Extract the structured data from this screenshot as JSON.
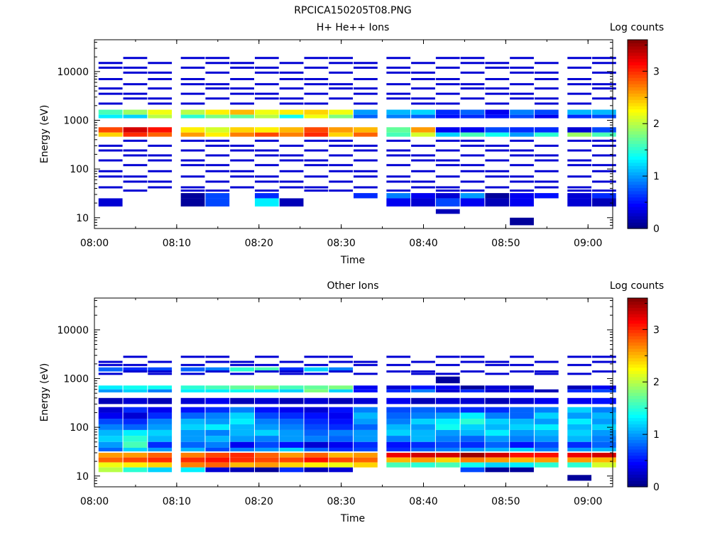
{
  "title": "RPCICA150205T08.PNG",
  "colorbar": {
    "title": "Log counts",
    "ticks": [
      "0",
      "1",
      "2",
      "3"
    ],
    "range": [
      0,
      3.6
    ],
    "colormap": [
      "#00007f",
      "#0000ff",
      "#007fff",
      "#00ffff",
      "#7fff7f",
      "#ffff00",
      "#ff7f00",
      "#ff0000",
      "#7f0000"
    ]
  },
  "chart_data": [
    {
      "type": "heatmap",
      "title": "H+ He++ Ions",
      "xlabel": "Time",
      "ylabel": "Energy (eV)",
      "x_ticks": [
        "08:00",
        "08:10",
        "08:20",
        "08:30",
        "08:40",
        "08:50",
        "09:00"
      ],
      "xlim": [
        "08:00",
        "09:03"
      ],
      "y_scale": "log",
      "y_ticks": [
        "10",
        "100",
        "1000",
        "10000"
      ],
      "ylim": [
        6,
        45000
      ],
      "time_bins": [
        "08:02",
        "08:05",
        "08:08",
        "08:12",
        "08:15",
        "08:18",
        "08:21",
        "08:24",
        "08:27",
        "08:30",
        "08:33",
        "08:37",
        "08:40",
        "08:43",
        "08:46",
        "08:49",
        "08:52",
        "08:55",
        "08:59",
        "09:02"
      ],
      "bands": [
        {
          "e_lo": 560,
          "e_hi": 720,
          "values": [
            2.9,
            3.3,
            3.1,
            2.3,
            2.1,
            2.4,
            2.3,
            2.5,
            2.9,
            2.6,
            2.5,
            1.7,
            2.6,
            0.4,
            0.4,
            0.7,
            0.6,
            0.6,
            0.3,
            0.7
          ]
        },
        {
          "e_lo": 460,
          "e_hi": 560,
          "values": [
            2.4,
            3.0,
            2.8,
            2.6,
            2.3,
            2.7,
            2.9,
            2.7,
            3.0,
            2.4,
            2.8,
            1.6,
            2.1,
            1.2,
            1.6,
            1.4,
            1.0,
            1.5,
            1.9,
            1.6
          ]
        },
        {
          "e_lo": 1300,
          "e_hi": 1650,
          "values": [
            1.6,
            1.9,
            2.2,
            2.0,
            2.3,
            2.5,
            2.2,
            2.3,
            2.4,
            2.2,
            1.0,
            1.1,
            1.2,
            0.6,
            0.8,
            0.4,
            0.9,
            0.7,
            1.1,
            1.1
          ]
        },
        {
          "e_lo": 1100,
          "e_hi": 1300,
          "values": [
            1.3,
            1.2,
            2.0,
            1.5,
            1.8,
            1.7,
            2.0,
            1.4,
            2.2,
            1.8,
            0.8,
            0.9,
            0.8,
            0.5,
            0.6,
            0.5,
            0.7,
            0.4,
            0.6,
            0.7
          ]
        },
        {
          "e_lo": 25,
          "e_hi": 32,
          "values": [
            null,
            null,
            null,
            0.1,
            0.7,
            null,
            0.6,
            null,
            null,
            null,
            0.6,
            0.9,
            0.4,
            0.3,
            1.0,
            0.1,
            0.4,
            0.5,
            0.3,
            0.6
          ]
        },
        {
          "e_lo": 17,
          "e_hi": 25,
          "values": [
            0.3,
            null,
            null,
            0.1,
            0.7,
            null,
            1.3,
            0.2,
            null,
            null,
            null,
            0.4,
            0.3,
            0.7,
            0.4,
            0.2,
            0.4,
            null,
            0.3,
            0.2
          ]
        },
        {
          "e_lo": 7,
          "e_hi": 10,
          "values": [
            null,
            null,
            null,
            null,
            null,
            null,
            null,
            null,
            null,
            null,
            null,
            null,
            null,
            null,
            null,
            null,
            0.1,
            null,
            null,
            null
          ]
        },
        {
          "e_lo": 12,
          "e_hi": 15,
          "values": [
            null,
            null,
            null,
            null,
            null,
            null,
            null,
            null,
            null,
            null,
            null,
            null,
            null,
            0.2,
            null,
            null,
            null,
            null,
            null,
            null
          ]
        }
      ],
      "sparse_energies": [
        19000,
        15000,
        12000,
        9500,
        7000,
        5500,
        4500,
        3500,
        2800,
        2200,
        380,
        300,
        240,
        190,
        150,
        120,
        90,
        70,
        55,
        42,
        36
      ],
      "sparse_level": 0.3
    },
    {
      "type": "heatmap",
      "title": "Other Ions",
      "xlabel": "Time",
      "ylabel": "Energy (eV)",
      "x_ticks": [
        "08:00",
        "08:10",
        "08:20",
        "08:30",
        "08:40",
        "08:50",
        "09:00"
      ],
      "xlim": [
        "08:00",
        "09:03"
      ],
      "y_scale": "log",
      "y_ticks": [
        "10",
        "100",
        "1000",
        "10000"
      ],
      "ylim": [
        6,
        45000
      ],
      "time_bins": [
        "08:02",
        "08:05",
        "08:08",
        "08:12",
        "08:15",
        "08:18",
        "08:21",
        "08:24",
        "08:27",
        "08:30",
        "08:33",
        "08:37",
        "08:40",
        "08:43",
        "08:46",
        "08:49",
        "08:52",
        "08:55",
        "08:59",
        "09:02"
      ],
      "bands": [
        {
          "e_lo": 24,
          "e_hi": 30,
          "values": [
            2.6,
            2.6,
            2.8,
            2.7,
            2.9,
            3.0,
            2.8,
            2.6,
            2.8,
            2.5,
            2.6,
            3.2,
            3.3,
            3.3,
            3.5,
            3.3,
            3.1,
            3.1,
            3.2,
            3.3
          ]
        },
        {
          "e_lo": 19,
          "e_hi": 24,
          "values": [
            2.8,
            2.9,
            3.0,
            3.0,
            3.1,
            3.0,
            2.9,
            2.9,
            3.1,
            2.9,
            2.8,
            2.5,
            2.6,
            2.4,
            2.7,
            2.6,
            2.5,
            2.6,
            2.6,
            2.5
          ]
        },
        {
          "e_lo": 15,
          "e_hi": 19,
          "values": [
            2.2,
            2.3,
            2.4,
            2.7,
            2.8,
            2.5,
            2.6,
            2.4,
            2.3,
            2.2,
            2.4,
            1.6,
            1.5,
            1.6,
            1.4,
            1.2,
            1.3,
            1.5,
            1.5,
            2.1
          ]
        },
        {
          "e_lo": 12,
          "e_hi": 15,
          "values": [
            2.0,
            1.5,
            1.2,
            1.3,
            0.3,
            0.2,
            0.1,
            0.6,
            0.2,
            0.3,
            null,
            null,
            null,
            null,
            0.7,
            0.1,
            0.1,
            null,
            null,
            null
          ]
        },
        {
          "e_lo": 8,
          "e_hi": 10.5,
          "values": [
            null,
            null,
            null,
            null,
            null,
            null,
            null,
            null,
            null,
            null,
            null,
            null,
            null,
            null,
            null,
            null,
            null,
            null,
            0.1,
            null
          ]
        },
        {
          "e_lo": 600,
          "e_hi": 720,
          "values": [
            1.3,
            1.4,
            1.4,
            1.5,
            1.6,
            1.7,
            1.8,
            1.6,
            1.7,
            1.8,
            0.4,
            0.3,
            0.5,
            0.4,
            0.1,
            0.3,
            0.2,
            null,
            0.2,
            0.4
          ]
        },
        {
          "e_lo": 520,
          "e_hi": 600,
          "values": [
            1.0,
            1.2,
            0.9,
            1.3,
            1.3,
            1.4,
            1.3,
            1.2,
            1.8,
            1.2,
            0.5,
            0.6,
            0.9,
            0.3,
            0.6,
            0.3,
            0.5,
            0.2,
            0.6,
            0.7
          ]
        },
        {
          "e_lo": 1400,
          "e_hi": 1700,
          "values": [
            0.8,
            0.6,
            0.7,
            0.8,
            0.9,
            1.5,
            1.6,
            0.6,
            1.2,
            0.9,
            null,
            null,
            null,
            null,
            null,
            null,
            null,
            null,
            null,
            null
          ]
        },
        {
          "e_lo": 800,
          "e_hi": 1100,
          "values": [
            null,
            null,
            null,
            null,
            null,
            null,
            null,
            null,
            null,
            null,
            null,
            null,
            null,
            0.1,
            null,
            null,
            null,
            null,
            null,
            null
          ]
        },
        {
          "e_lo": 200,
          "e_hi": 260,
          "values": [
            0.3,
            0.6,
            0.4,
            0.5,
            0.6,
            0.9,
            0.5,
            0.4,
            0.3,
            0.5,
            0.9,
            0.7,
            0.8,
            0.7,
            0.6,
            0.6,
            0.8,
            0.9,
            1.2,
            0.9
          ]
        },
        {
          "e_lo": 150,
          "e_hi": 200,
          "values": [
            0.4,
            0.3,
            0.6,
            0.8,
            0.9,
            1.2,
            0.7,
            0.6,
            0.5,
            0.4,
            1.1,
            0.8,
            0.9,
            1.0,
            1.3,
            0.9,
            0.8,
            1.2,
            1.0,
            1.1
          ]
        },
        {
          "e_lo": 115,
          "e_hi": 150,
          "values": [
            0.7,
            0.6,
            0.9,
            1.1,
            1.0,
            1.3,
            0.9,
            0.8,
            0.6,
            0.5,
            1.0,
            0.9,
            1.2,
            1.3,
            1.5,
            1.2,
            1.1,
            1.0,
            1.3,
            1.0
          ]
        },
        {
          "e_lo": 88,
          "e_hi": 115,
          "values": [
            0.9,
            0.8,
            1.0,
            1.2,
            1.3,
            1.1,
            1.0,
            0.9,
            0.7,
            0.6,
            0.8,
            1.1,
            1.0,
            1.4,
            1.2,
            1.1,
            1.2,
            1.3,
            1.1,
            1.2
          ]
        },
        {
          "e_lo": 67,
          "e_hi": 88,
          "values": [
            1.1,
            1.3,
            1.2,
            1.0,
            0.9,
            1.1,
            1.2,
            1.0,
            0.8,
            0.9,
            1.0,
            1.2,
            1.1,
            1.0,
            1.1,
            1.3,
            1.0,
            1.1,
            1.2,
            1.0
          ]
        },
        {
          "e_lo": 50,
          "e_hi": 67,
          "values": [
            1.2,
            1.5,
            1.1,
            1.0,
            1.1,
            1.0,
            0.9,
            1.0,
            0.9,
            0.8,
            1.0,
            0.9,
            1.1,
            0.9,
            0.8,
            1.0,
            0.9,
            1.0,
            1.1,
            0.9
          ]
        },
        {
          "e_lo": 38,
          "e_hi": 50,
          "values": [
            1.0,
            1.6,
            0.6,
            0.8,
            0.9,
            0.4,
            0.7,
            0.5,
            0.3,
            0.4,
            0.6,
            0.5,
            0.6,
            0.7,
            0.6,
            0.8,
            0.5,
            0.7,
            0.6,
            0.8
          ]
        },
        {
          "e_lo": 32,
          "e_hi": 38,
          "values": [
            0.8,
            1.2,
            1.0,
            1.1,
            0.7,
            0.9,
            1.0,
            1.2,
            0.8,
            0.6,
            0.7,
            0.6,
            0.8,
            0.9,
            1.0,
            1.1,
            1.2,
            0.9,
            1.0,
            1.1
          ]
        },
        {
          "e_lo": 300,
          "e_hi": 400,
          "values": [
            0.2,
            0.3,
            0.2,
            0.3,
            0.4,
            0.2,
            0.3,
            0.2,
            0.3,
            0.2,
            0.3,
            0.4,
            0.2,
            0.3,
            0.3,
            0.2,
            0.3,
            0.4,
            0.4,
            0.5
          ]
        }
      ],
      "sparse_energies": [
        2800,
        2200,
        1900,
        1400,
        1250
      ],
      "sparse_level": 0.3
    }
  ]
}
